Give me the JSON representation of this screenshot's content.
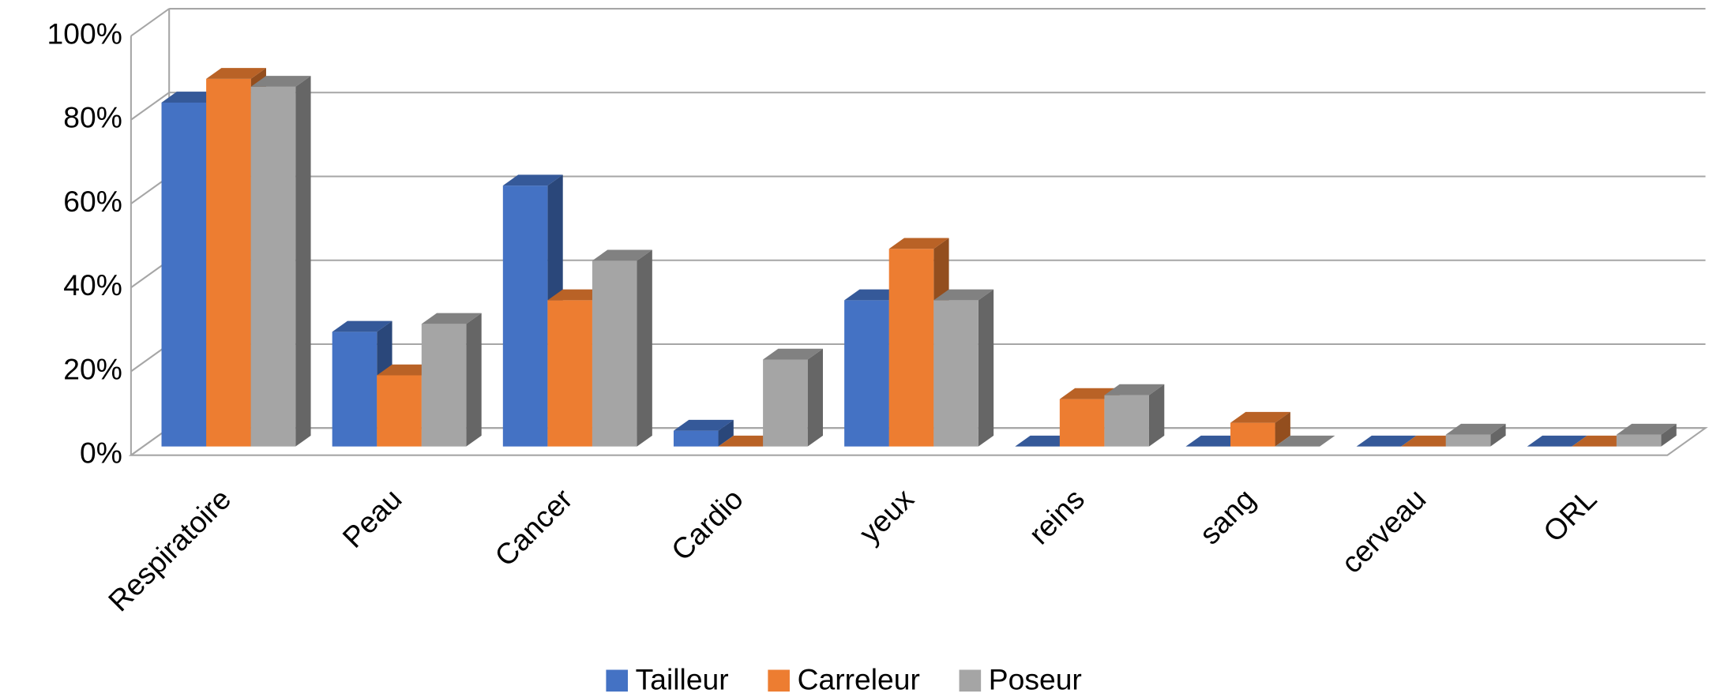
{
  "chart_data": {
    "type": "bar3d",
    "categories": [
      "Respiratoire",
      "Peau",
      "Cancer",
      "Cardio",
      "yeux",
      "reins",
      "sang",
      "cerveau",
      "ORL"
    ],
    "series": [
      {
        "name": "Tailleur",
        "color": "#4472c4",
        "values": [
          87,
          29,
          66,
          4,
          37,
          0,
          0,
          0,
          0
        ]
      },
      {
        "name": "Carreleur",
        "color": "#ed7d31",
        "values": [
          93,
          18,
          37,
          0,
          50,
          12,
          6,
          0,
          0
        ]
      },
      {
        "name": "Poseur",
        "color": "#a5a5a5",
        "values": [
          91,
          31,
          47,
          22,
          37,
          13,
          0,
          3,
          3
        ]
      }
    ],
    "ylim": [
      0,
      100
    ],
    "yticks": [
      {
        "value": 0,
        "label": "0%"
      },
      {
        "value": 20,
        "label": "20%"
      },
      {
        "value": 40,
        "label": "40%"
      },
      {
        "value": 60,
        "label": "60%"
      },
      {
        "value": 80,
        "label": "80%"
      },
      {
        "value": 100,
        "label": "100%"
      }
    ],
    "grid": true
  }
}
